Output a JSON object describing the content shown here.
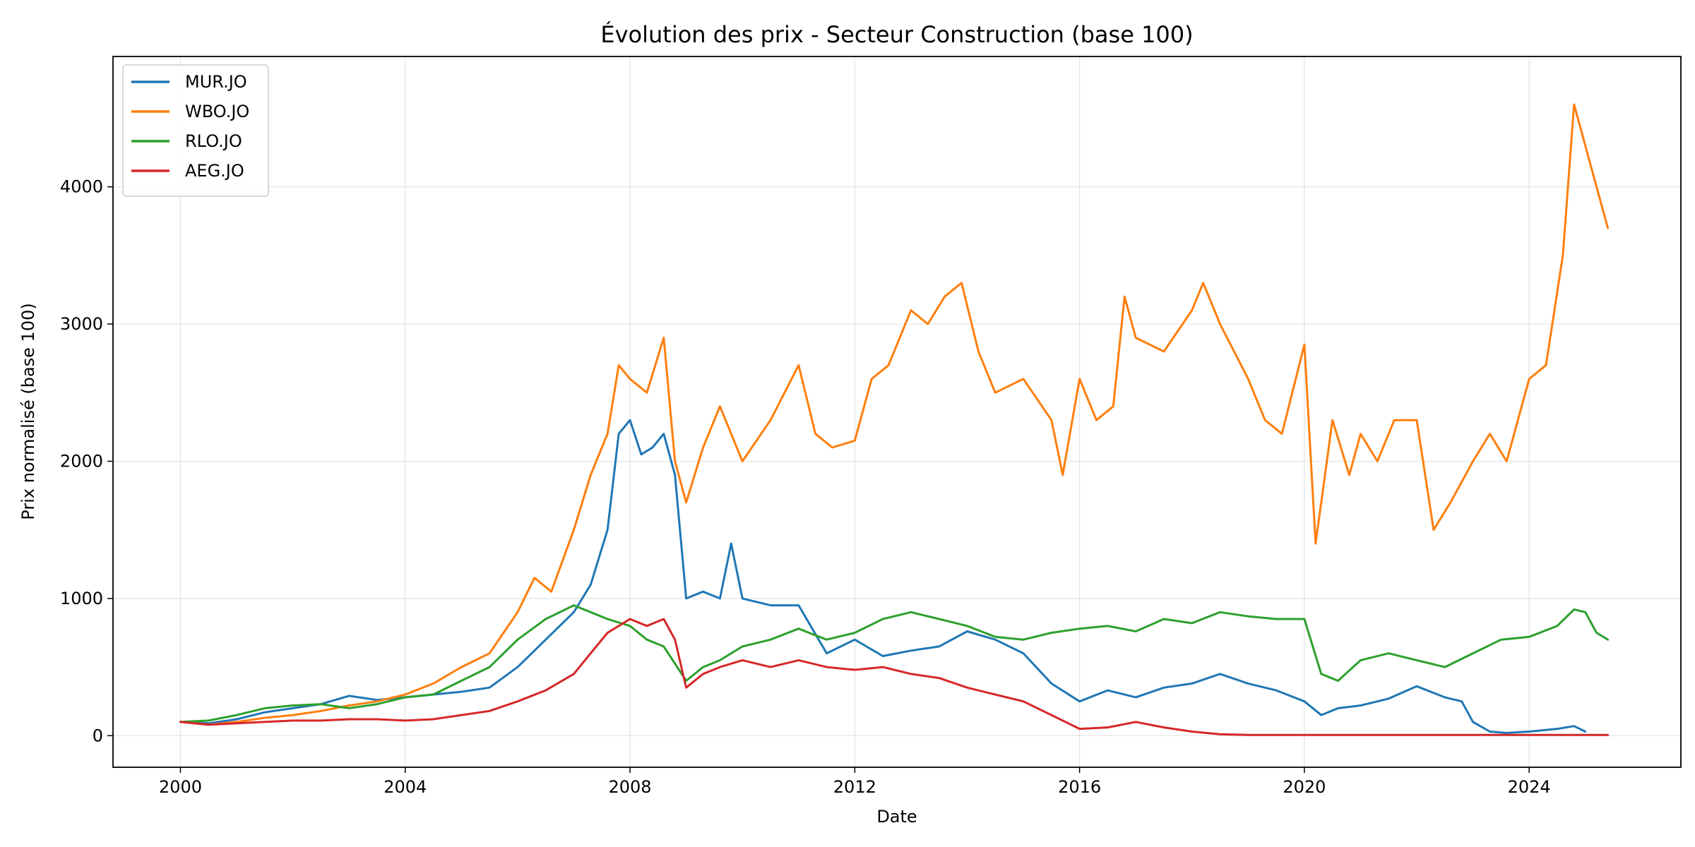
{
  "chart_data": {
    "type": "line",
    "title": "Évolution des prix - Secteur Construction (base 100)",
    "xlabel": "Date",
    "ylabel": "Prix normalisé (base 100)",
    "xlim": [
      1998.8,
      2026.7
    ],
    "ylim": [
      -230,
      4950
    ],
    "x_ticks": [
      2000,
      2004,
      2008,
      2012,
      2016,
      2020,
      2024
    ],
    "x_tick_labels": [
      "2000",
      "2004",
      "2008",
      "2012",
      "2016",
      "2020",
      "2024"
    ],
    "y_ticks": [
      0,
      1000,
      2000,
      3000,
      4000
    ],
    "y_tick_labels": [
      "0",
      "1000",
      "2000",
      "3000",
      "4000"
    ],
    "grid": true,
    "legend_position": "top-left",
    "series": [
      {
        "name": "MUR.JO",
        "color": "#1f77b4",
        "x": [
          2000.0,
          2000.5,
          2001.0,
          2001.5,
          2002.0,
          2002.5,
          2003.0,
          2003.5,
          2004.0,
          2004.5,
          2005.0,
          2005.5,
          2006.0,
          2006.5,
          2007.0,
          2007.3,
          2007.6,
          2007.8,
          2008.0,
          2008.2,
          2008.4,
          2008.6,
          2008.8,
          2009.0,
          2009.3,
          2009.6,
          2009.8,
          2010.0,
          2010.5,
          2011.0,
          2011.5,
          2012.0,
          2012.5,
          2013.0,
          2013.5,
          2014.0,
          2014.5,
          2015.0,
          2015.5,
          2016.0,
          2016.5,
          2017.0,
          2017.5,
          2018.0,
          2018.5,
          2019.0,
          2019.5,
          2020.0,
          2020.3,
          2020.6,
          2021.0,
          2021.5,
          2022.0,
          2022.5,
          2022.8,
          2023.0,
          2023.3,
          2023.6,
          2024.0,
          2024.5,
          2024.8,
          2025.0
        ],
        "values": [
          100,
          90,
          120,
          170,
          200,
          230,
          290,
          260,
          280,
          300,
          320,
          350,
          500,
          700,
          900,
          1100,
          1500,
          2200,
          2300,
          2050,
          2100,
          2200,
          1900,
          1000,
          1050,
          1000,
          1400,
          1000,
          950,
          950,
          600,
          700,
          580,
          620,
          650,
          760,
          700,
          600,
          380,
          250,
          330,
          280,
          350,
          380,
          450,
          380,
          330,
          250,
          150,
          200,
          220,
          270,
          360,
          280,
          250,
          100,
          30,
          20,
          30,
          50,
          70,
          30
        ]
      },
      {
        "name": "WBO.JO",
        "color": "#ff7f0e",
        "x": [
          2000.0,
          2000.5,
          2001.0,
          2001.5,
          2002.0,
          2002.5,
          2003.0,
          2003.5,
          2004.0,
          2004.5,
          2005.0,
          2005.5,
          2006.0,
          2006.3,
          2006.6,
          2007.0,
          2007.3,
          2007.6,
          2007.8,
          2008.0,
          2008.3,
          2008.6,
          2008.8,
          2009.0,
          2009.3,
          2009.6,
          2010.0,
          2010.5,
          2011.0,
          2011.3,
          2011.6,
          2012.0,
          2012.3,
          2012.6,
          2013.0,
          2013.3,
          2013.6,
          2013.9,
          2014.2,
          2014.5,
          2015.0,
          2015.5,
          2015.7,
          2016.0,
          2016.3,
          2016.6,
          2016.8,
          2017.0,
          2017.5,
          2018.0,
          2018.2,
          2018.5,
          2019.0,
          2019.3,
          2019.6,
          2020.0,
          2020.2,
          2020.5,
          2020.8,
          2021.0,
          2021.3,
          2021.6,
          2022.0,
          2022.3,
          2022.6,
          2023.0,
          2023.3,
          2023.6,
          2024.0,
          2024.3,
          2024.6,
          2024.8,
          2025.0,
          2025.2,
          2025.4
        ],
        "values": [
          100,
          80,
          100,
          130,
          150,
          180,
          220,
          250,
          300,
          380,
          500,
          600,
          900,
          1150,
          1050,
          1500,
          1900,
          2200,
          2700,
          2600,
          2500,
          2900,
          2000,
          1700,
          2100,
          2400,
          2000,
          2300,
          2700,
          2200,
          2100,
          2150,
          2600,
          2700,
          3100,
          3000,
          3200,
          3300,
          2800,
          2500,
          2600,
          2300,
          1900,
          2600,
          2300,
          2400,
          3200,
          2900,
          2800,
          3100,
          3300,
          3000,
          2600,
          2300,
          2200,
          2850,
          1400,
          2300,
          1900,
          2200,
          2000,
          2300,
          2300,
          1500,
          1700,
          2000,
          2200,
          2000,
          2600,
          2700,
          3500,
          4600,
          4300,
          4000,
          3700
        ]
      },
      {
        "name": "RLO.JO",
        "color": "#2ca02c",
        "x": [
          2000.0,
          2000.5,
          2001.0,
          2001.5,
          2002.0,
          2002.5,
          2003.0,
          2003.5,
          2004.0,
          2004.5,
          2005.0,
          2005.5,
          2006.0,
          2006.5,
          2007.0,
          2007.3,
          2007.6,
          2008.0,
          2008.3,
          2008.6,
          2009.0,
          2009.3,
          2009.6,
          2010.0,
          2010.5,
          2011.0,
          2011.5,
          2012.0,
          2012.5,
          2013.0,
          2013.5,
          2014.0,
          2014.5,
          2015.0,
          2015.5,
          2016.0,
          2016.5,
          2017.0,
          2017.5,
          2018.0,
          2018.5,
          2019.0,
          2019.5,
          2020.0,
          2020.3,
          2020.6,
          2021.0,
          2021.5,
          2022.0,
          2022.5,
          2023.0,
          2023.5,
          2024.0,
          2024.5,
          2024.8,
          2025.0,
          2025.2,
          2025.4
        ],
        "values": [
          100,
          110,
          150,
          200,
          220,
          230,
          200,
          230,
          280,
          300,
          400,
          500,
          700,
          850,
          950,
          900,
          850,
          800,
          700,
          650,
          400,
          500,
          550,
          650,
          700,
          780,
          700,
          750,
          850,
          900,
          850,
          800,
          720,
          700,
          750,
          780,
          800,
          760,
          850,
          820,
          900,
          870,
          850,
          850,
          450,
          400,
          550,
          600,
          550,
          500,
          600,
          700,
          720,
          800,
          920,
          900,
          750,
          700
        ]
      },
      {
        "name": "AEG.JO",
        "color": "#d62728",
        "x": [
          2000.0,
          2000.5,
          2001.0,
          2001.5,
          2002.0,
          2002.5,
          2003.0,
          2003.5,
          2004.0,
          2004.5,
          2005.0,
          2005.5,
          2006.0,
          2006.5,
          2007.0,
          2007.3,
          2007.6,
          2008.0,
          2008.3,
          2008.6,
          2008.8,
          2009.0,
          2009.3,
          2009.6,
          2010.0,
          2010.5,
          2011.0,
          2011.5,
          2012.0,
          2012.5,
          2013.0,
          2013.5,
          2014.0,
          2014.5,
          2015.0,
          2015.5,
          2016.0,
          2016.5,
          2017.0,
          2017.5,
          2018.0,
          2018.5,
          2019.0,
          2020.0,
          2021.0,
          2022.0,
          2023.0,
          2024.0,
          2025.0,
          2025.4
        ],
        "values": [
          100,
          80,
          90,
          100,
          110,
          110,
          120,
          120,
          110,
          120,
          150,
          180,
          250,
          330,
          450,
          600,
          750,
          850,
          800,
          850,
          700,
          350,
          450,
          500,
          550,
          500,
          550,
          500,
          480,
          500,
          450,
          420,
          350,
          300,
          250,
          150,
          50,
          60,
          100,
          60,
          30,
          10,
          5,
          5,
          5,
          5,
          5,
          5,
          5,
          5
        ]
      }
    ]
  }
}
